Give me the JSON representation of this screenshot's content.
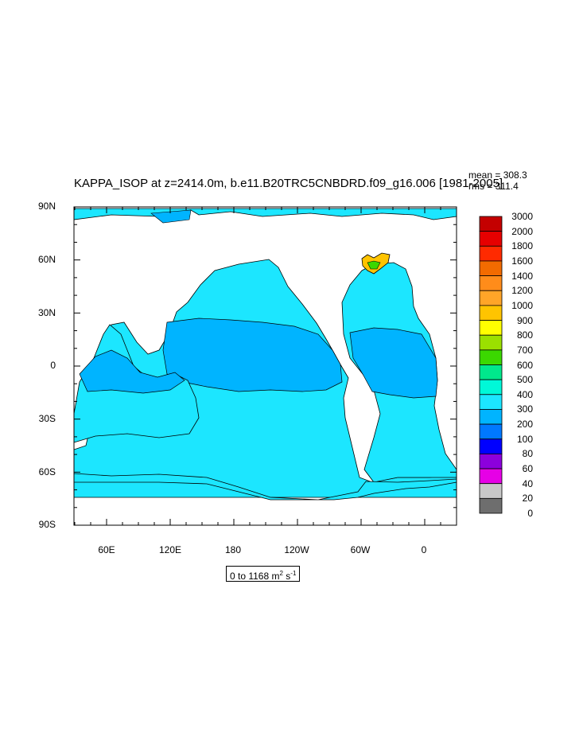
{
  "title": "KAPPA_ISOP at z=2414.0m, b.e11.B20TRC5CNBDRD.f09_g16.006 [1981-2005]",
  "stats": {
    "mean": "mean = 308.3",
    "rms": "rms = 311.4"
  },
  "units": {
    "range": "0 to 1168 m",
    "exp1": "2",
    "unit_s": " s",
    "exp2": "-1"
  },
  "lat_labels": [
    "90N",
    "60N",
    "30N",
    "0",
    "30S",
    "60S",
    "90S"
  ],
  "lon_labels": [
    "60E",
    "120E",
    "180",
    "120W",
    "60W",
    "0"
  ],
  "colorbar": {
    "levels": [
      "3000",
      "2000",
      "1800",
      "1600",
      "1400",
      "1200",
      "1000",
      "900",
      "800",
      "700",
      "600",
      "500",
      "400",
      "300",
      "200",
      "100",
      "80",
      "60",
      "40",
      "20",
      "0"
    ],
    "colors": [
      "#c40000",
      "#e60000",
      "#ff2a00",
      "#f26b00",
      "#ff8c1a",
      "#ffa528",
      "#ffc400",
      "#ffff00",
      "#9be000",
      "#3bd800",
      "#00e88c",
      "#00f8d8",
      "#1ce6ff",
      "#00b4ff",
      "#0078ff",
      "#0000ff",
      "#8c00dc",
      "#e600e6",
      "#c8c8c8",
      "#6e6e6e"
    ]
  },
  "map_colors": {
    "ocean_300_400": "#1ce6ff",
    "ocean_200_300": "#00b4ff",
    "land": "#ffffff"
  }
}
